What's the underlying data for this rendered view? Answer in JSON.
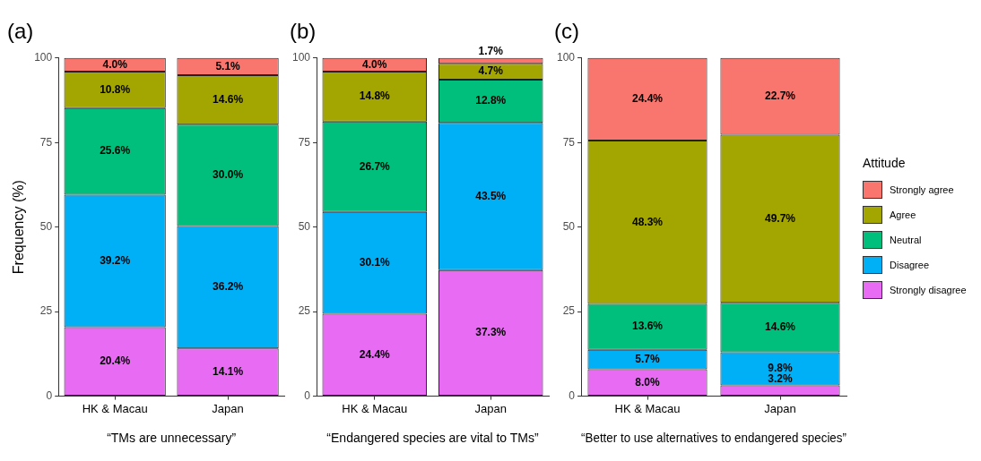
{
  "chart_data": [
    {
      "type": "bar",
      "title": "(a)",
      "ylabel": "Frequency (%)",
      "xlabel": "“TMs are unnecessary”",
      "categories": [
        "HK & Macau",
        "Japan"
      ],
      "stacked": true,
      "ylim": [
        0,
        100
      ],
      "yticks": [
        0,
        25,
        50,
        75,
        100
      ],
      "grid": false,
      "legend": false,
      "series": [
        {
          "color": "#e76bf3",
          "values": [
            20.4,
            14.1
          ],
          "value_labels": [
            "20.4%",
            "14.1%"
          ]
        },
        {
          "color": "#00b0f6",
          "values": [
            39.2,
            36.2
          ],
          "value_labels": [
            "39.2%",
            "36.2%"
          ]
        },
        {
          "color": "#00bf7d",
          "values": [
            25.6,
            30.0
          ],
          "value_labels": [
            "25.6%",
            "30.0%"
          ]
        },
        {
          "color": "#a3a500",
          "values": [
            10.8,
            14.6
          ],
          "value_labels": [
            "10.8%",
            "14.6%"
          ]
        },
        {
          "color": "#f8766d",
          "values": [
            4.0,
            5.1
          ],
          "value_labels": [
            "4.0%",
            "5.1%"
          ]
        }
      ]
    },
    {
      "type": "bar",
      "title": "(b)",
      "xlabel": "“Endangered species are vital to TMs”",
      "categories": [
        "HK & Macau",
        "Japan"
      ],
      "stacked": true,
      "ylim": [
        0,
        100
      ],
      "yticks": [
        0,
        25,
        50,
        75,
        100
      ],
      "grid": false,
      "legend": false,
      "series": [
        {
          "color": "#e76bf3",
          "values": [
            24.4,
            37.3
          ],
          "value_labels": [
            "24.4%",
            "37.3%"
          ]
        },
        {
          "color": "#00b0f6",
          "values": [
            30.1,
            43.5
          ],
          "value_labels": [
            "30.1%",
            "43.5%"
          ]
        },
        {
          "color": "#00bf7d",
          "values": [
            26.7,
            12.8
          ],
          "value_labels": [
            "26.7%",
            "12.8%"
          ]
        },
        {
          "color": "#a3a500",
          "values": [
            14.8,
            4.7
          ],
          "value_labels": [
            "14.8%",
            "4.7%"
          ]
        },
        {
          "color": "#f8766d",
          "values": [
            4.0,
            1.7
          ],
          "value_labels": [
            "4.0%",
            "1.7%"
          ]
        }
      ]
    },
    {
      "type": "bar",
      "title": "(c)",
      "xlabel": "“Better to use alternatives to endangered species”",
      "legend_title": "Attitude",
      "categories": [
        "HK & Macau",
        "Japan"
      ],
      "stacked": true,
      "ylim": [
        0,
        100
      ],
      "yticks": [
        0,
        25,
        50,
        75,
        100
      ],
      "grid": false,
      "legend": "right",
      "series": [
        {
          "name": "Strongly disagree",
          "color": "#e76bf3",
          "values": [
            8.0,
            3.2
          ],
          "value_labels": [
            "8.0%",
            "3.2%"
          ]
        },
        {
          "name": "Disagree",
          "color": "#00b0f6",
          "values": [
            5.7,
            9.8
          ],
          "value_labels": [
            "5.7%",
            "9.8%"
          ]
        },
        {
          "name": "Neutral",
          "color": "#00bf7d",
          "values": [
            13.6,
            14.6
          ],
          "value_labels": [
            "13.6%",
            "14.6%"
          ]
        },
        {
          "name": "Agree",
          "color": "#a3a500",
          "values": [
            48.3,
            49.7
          ],
          "value_labels": [
            "48.3%",
            "49.7%"
          ]
        },
        {
          "name": "Strongly agree",
          "color": "#f8766d",
          "values": [
            24.4,
            22.7
          ],
          "value_labels": [
            "24.4%",
            "22.7%"
          ]
        }
      ]
    }
  ]
}
